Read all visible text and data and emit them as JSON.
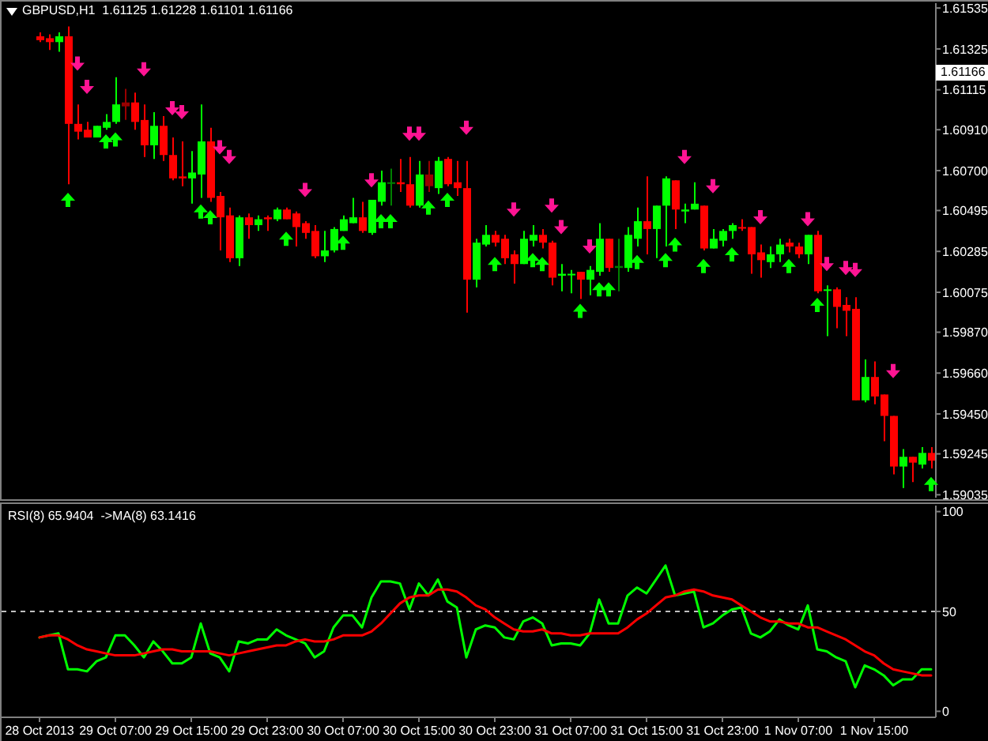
{
  "chart_data": [
    {
      "type": "candlestick",
      "title": "GBPUSD,H1  1.61125 1.61228 1.61101 1.61166",
      "categories": [
        null,
        null,
        null,
        null,
        null,
        null,
        null,
        null,
        null,
        null,
        null,
        null,
        null,
        null,
        null,
        null,
        null,
        null,
        null,
        null,
        null,
        null,
        null,
        null,
        null,
        null,
        null,
        null,
        null,
        null,
        null,
        null,
        null,
        null,
        null,
        null,
        null,
        null,
        null,
        null,
        null,
        null,
        null,
        null,
        null,
        null,
        null,
        null,
        null,
        null,
        null,
        null,
        null,
        null,
        null,
        null,
        null,
        null,
        null,
        null,
        null,
        null,
        null,
        null,
        null,
        null,
        null,
        null,
        null,
        null,
        null,
        null,
        null,
        null,
        null,
        null,
        null,
        null,
        null,
        null,
        null,
        null,
        null,
        null,
        null,
        null,
        null,
        null,
        null,
        null,
        null,
        null,
        null,
        null,
        null
      ],
      "ohlc": [
        [
          1.6139,
          1.6141,
          1.6136,
          1.6137
        ],
        [
          1.6138,
          1.614,
          1.6132,
          1.6136
        ],
        [
          1.6136,
          1.6141,
          1.6131,
          1.6139
        ],
        [
          1.6139,
          1.6144,
          1.6063,
          1.6094
        ],
        [
          1.6094,
          1.6104,
          1.6086,
          1.609
        ],
        [
          1.6091,
          1.6095,
          1.6087,
          1.6087
        ],
        [
          1.6087,
          1.6093,
          1.6087,
          1.6093
        ],
        [
          1.6092,
          1.6099,
          1.6091,
          1.6095
        ],
        [
          1.6095,
          1.6118,
          1.6094,
          1.6104
        ],
        [
          1.6105,
          1.6112,
          1.6096,
          1.6103
        ],
        [
          1.6105,
          1.611,
          1.6091,
          1.6095
        ],
        [
          1.6096,
          1.6104,
          1.6077,
          1.6083
        ],
        [
          1.6083,
          1.61,
          1.6076,
          1.6093
        ],
        [
          1.6093,
          1.6098,
          1.6075,
          1.6078
        ],
        [
          1.6078,
          1.6087,
          1.6065,
          1.6066
        ],
        [
          1.6067,
          1.6085,
          1.6062,
          1.6066
        ],
        [
          1.6066,
          1.608,
          1.6053,
          1.6069
        ],
        [
          1.6068,
          1.6104,
          1.6056,
          1.6085
        ],
        [
          1.6085,
          1.6092,
          1.6054,
          1.6056
        ],
        [
          1.6057,
          1.6059,
          1.6029,
          1.6046
        ],
        [
          1.6047,
          1.6051,
          1.6023,
          1.6025
        ],
        [
          1.6025,
          1.6047,
          1.6021,
          1.6046
        ],
        [
          1.6046,
          1.6048,
          1.6035,
          1.6042
        ],
        [
          1.6042,
          1.6047,
          1.6039,
          1.6045
        ],
        [
          1.6046,
          1.6047,
          1.6039,
          1.6045
        ],
        [
          1.6045,
          1.6051,
          1.6044,
          1.605
        ],
        [
          1.605,
          1.6051,
          1.6045,
          1.6045
        ],
        [
          1.6048,
          1.6049,
          1.6031,
          1.6041
        ],
        [
          1.6043,
          1.6044,
          1.6035,
          1.6038
        ],
        [
          1.6039,
          1.6042,
          1.6025,
          1.6026
        ],
        [
          1.6026,
          1.6039,
          1.6023,
          1.6029
        ],
        [
          1.6029,
          1.6041,
          1.6028,
          1.604
        ],
        [
          1.6039,
          1.6047,
          1.6039,
          1.6045
        ],
        [
          1.6043,
          1.6056,
          1.6043,
          1.6046
        ],
        [
          1.6046,
          1.6054,
          1.6038,
          1.6039
        ],
        [
          1.6038,
          1.6055,
          1.6037,
          1.6055
        ],
        [
          1.6054,
          1.607,
          1.6052,
          1.6064
        ],
        [
          1.6064,
          1.6071,
          1.6052,
          1.6064
        ],
        [
          1.6064,
          1.6076,
          1.6059,
          1.6063
        ],
        [
          1.6063,
          1.6077,
          1.6051,
          1.6052
        ],
        [
          1.6052,
          1.6075,
          1.6051,
          1.6068
        ],
        [
          1.6068,
          1.6075,
          1.6059,
          1.6062
        ],
        [
          1.6061,
          1.6077,
          1.6058,
          1.6075
        ],
        [
          1.6076,
          1.6077,
          1.6062,
          1.6063
        ],
        [
          1.6064,
          1.6075,
          1.6057,
          1.6061
        ],
        [
          1.6061,
          1.6075,
          1.5997,
          1.6014
        ],
        [
          1.6014,
          1.6035,
          1.601,
          1.6033
        ],
        [
          1.6032,
          1.6042,
          1.6031,
          1.6037
        ],
        [
          1.6037,
          1.6039,
          1.6031,
          1.6033
        ],
        [
          1.6035,
          1.6037,
          1.6022,
          1.6025
        ],
        [
          1.6027,
          1.6029,
          1.6012,
          1.6022
        ],
        [
          1.6022,
          1.6039,
          1.6022,
          1.6035
        ],
        [
          1.6034,
          1.6042,
          1.6031,
          1.6037
        ],
        [
          1.6037,
          1.604,
          1.603,
          1.6033
        ],
        [
          1.6033,
          1.6034,
          1.6011,
          1.6015
        ],
        [
          1.6016,
          1.6022,
          1.6008,
          1.6017
        ],
        [
          1.6017,
          1.6019,
          1.6007,
          1.6017
        ],
        [
          1.6018,
          1.6018,
          1.6004,
          1.6014
        ],
        [
          1.6014,
          1.6021,
          1.6006,
          1.6019
        ],
        [
          1.6018,
          1.6043,
          1.6016,
          1.6035
        ],
        [
          1.6035,
          1.6035,
          1.6018,
          1.602
        ],
        [
          1.602,
          1.6035,
          1.6008,
          1.6021
        ],
        [
          1.602,
          1.6041,
          1.6018,
          1.6037
        ],
        [
          1.6035,
          1.6051,
          1.6031,
          1.6044
        ],
        [
          1.6044,
          1.6067,
          1.6027,
          1.604
        ],
        [
          1.604,
          1.6052,
          1.6025,
          1.6052
        ],
        [
          1.6052,
          1.6067,
          1.6031,
          1.6066
        ],
        [
          1.6065,
          1.6065,
          1.604,
          1.605
        ],
        [
          1.6049,
          1.6053,
          1.6043,
          1.605
        ],
        [
          1.605,
          1.6064,
          1.605,
          1.6053
        ],
        [
          1.6052,
          1.6052,
          1.6029,
          1.603
        ],
        [
          1.603,
          1.604,
          1.603,
          1.6035
        ],
        [
          1.6034,
          1.604,
          1.6031,
          1.6039
        ],
        [
          1.6039,
          1.6043,
          1.6035,
          1.6042
        ],
        [
          1.6041,
          1.6045,
          1.6039,
          1.6041
        ],
        [
          1.6041,
          1.6041,
          1.6017,
          1.6027
        ],
        [
          1.6028,
          1.6032,
          1.6015,
          1.6024
        ],
        [
          1.6023,
          1.6031,
          1.602,
          1.6027
        ],
        [
          1.6027,
          1.6035,
          1.6023,
          1.6032
        ],
        [
          1.6033,
          1.6035,
          1.6028,
          1.6031
        ],
        [
          1.6031,
          1.6033,
          1.6025,
          1.6027
        ],
        [
          1.6027,
          1.6037,
          1.6022,
          1.6037
        ],
        [
          1.6037,
          1.6039,
          1.6007,
          1.6008
        ],
        [
          1.6009,
          1.6011,
          1.5985,
          1.6009
        ],
        [
          1.6009,
          1.601,
          1.5989,
          1.6
        ],
        [
          1.6001,
          1.6005,
          1.5985,
          1.5998
        ],
        [
          1.5999,
          1.6005,
          1.5952,
          1.5952
        ],
        [
          1.5952,
          1.5973,
          1.5951,
          1.5964
        ],
        [
          1.5964,
          1.5972,
          1.595,
          1.5954
        ],
        [
          1.5955,
          1.5955,
          1.5931,
          1.5944
        ],
        [
          1.5944,
          1.5944,
          1.5914,
          1.5918
        ],
        [
          1.5918,
          1.5927,
          1.5907,
          1.5923
        ],
        [
          1.5923,
          1.5923,
          1.591,
          1.592
        ],
        [
          1.5919,
          1.5928,
          1.5917,
          1.5925
        ],
        [
          1.5925,
          1.5928,
          1.5917,
          1.5921
        ]
      ],
      "colors": [
        "#ff0000",
        "#ff0000",
        "#00ff00",
        "#ff0000",
        "#ff0000",
        "#ff0000",
        "#00ff00",
        "#00ff00",
        "#00ff00",
        "#990000",
        "#ff0000",
        "#ff0000",
        "#00ff00",
        "#ff0000",
        "#ff0000",
        "#ff0000",
        "#00ff00",
        "#00ff00",
        "#ff0000",
        "#ff0000",
        "#ff0000",
        "#00ff00",
        "#ff0000",
        "#00ff00",
        "#ff0000",
        "#00ff00",
        "#ff0000",
        "#ff0000",
        "#ff0000",
        "#ff0000",
        "#00ff00",
        "#00ff00",
        "#00ff00",
        "#00ff00",
        "#ff0000",
        "#00ff00",
        "#00ff00",
        "#008000",
        "#ff0000",
        "#ff0000",
        "#00ff00",
        "#990000",
        "#00ff00",
        "#ff0000",
        "#ff0000",
        "#ff0000",
        "#00ff00",
        "#00ff00",
        "#ff0000",
        "#ff0000",
        "#ff0000",
        "#00ff00",
        "#00ff00",
        "#ff0000",
        "#ff0000",
        "#00ff00",
        "#00ff00",
        "#ff0000",
        "#00ff00",
        "#00ff00",
        "#ff0000",
        "#008000",
        "#00ff00",
        "#00ff00",
        "#ff0000",
        "#00ff00",
        "#00ff00",
        "#ff0000",
        "#00ff00",
        "#00ff00",
        "#ff0000",
        "#00ff00",
        "#00ff00",
        "#00ff00",
        "#ff0000",
        "#ff0000",
        "#ff0000",
        "#00ff00",
        "#00ff00",
        "#ff0000",
        "#ff0000",
        "#00ff00",
        "#ff0000",
        "#00ff00",
        "#ff0000",
        "#ff0000",
        "#ff0000",
        "#00ff00",
        "#ff0000",
        "#ff0000",
        "#ff0000",
        "#00ff00",
        "#ff0000",
        "#00ff00",
        "#ff0000"
      ],
      "series": [
        {
          "type": "scatter",
          "color": "#00ff00",
          "values": [
            null,
            null,
            null,
            1.6055,
            null,
            null,
            null,
            1.6085,
            1.6086,
            null,
            null,
            null,
            null,
            null,
            null,
            null,
            null,
            1.6049,
            1.6046,
            null,
            null,
            null,
            null,
            null,
            null,
            null,
            1.6035,
            null,
            null,
            null,
            null,
            null,
            1.6033,
            null,
            null,
            null,
            1.6044,
            1.6044,
            null,
            null,
            null,
            1.6051,
            null,
            1.6055,
            null,
            null,
            null,
            null,
            1.6022,
            null,
            null,
            null,
            1.6024,
            1.6022,
            null,
            null,
            null,
            1.5998,
            null,
            1.6009,
            1.6009,
            null,
            null,
            1.6023,
            null,
            null,
            1.6024,
            1.6032,
            null,
            null,
            1.6021,
            null,
            null,
            1.6027,
            null,
            null,
            null,
            null,
            null,
            1.6021,
            null,
            null,
            1.6001,
            null,
            null,
            null,
            null,
            null,
            null,
            null,
            null,
            null,
            null,
            null,
            1.5909
          ]
        },
        {
          "type": "scatter",
          "color": "#ff1493",
          "values": [
            null,
            null,
            null,
            null,
            1.6125,
            1.6113,
            null,
            null,
            null,
            null,
            null,
            1.6122,
            null,
            null,
            1.6102,
            1.61,
            null,
            null,
            null,
            1.6082,
            1.6077,
            null,
            null,
            null,
            null,
            null,
            null,
            null,
            1.606,
            null,
            null,
            null,
            null,
            null,
            null,
            1.6065,
            null,
            null,
            null,
            1.6089,
            1.6089,
            null,
            null,
            null,
            null,
            1.6092,
            null,
            null,
            null,
            null,
            1.605,
            null,
            null,
            null,
            1.6052,
            1.6041,
            null,
            null,
            1.6031,
            null,
            null,
            null,
            null,
            null,
            null,
            null,
            null,
            null,
            1.6077,
            null,
            null,
            1.6062,
            null,
            null,
            null,
            null,
            1.6046,
            null,
            null,
            null,
            null,
            1.6045,
            null,
            1.6022,
            null,
            1.602,
            1.6019,
            null,
            null,
            null,
            1.5967,
            null,
            null,
            null,
            null
          ]
        }
      ],
      "marker": "triangle",
      "ylim": [
        1.5902,
        1.6156
      ],
      "yticks": [
        1.59035,
        1.59245,
        {
          "value": 1.5945,
          "label": "1.59450"
        },
        {
          "value": 1.5966,
          "label": "1.59660"
        },
        {
          "value": 1.5987,
          "label": "1.59870"
        },
        1.60075,
        1.60285,
        1.60495,
        {
          "value": 1.607,
          "label": "1.60700"
        },
        {
          "value": 1.6091,
          "label": "1.60910"
        },
        1.61115,
        1.61325,
        1.61535
      ],
      "tick_labels": "y",
      "annotations": [
        "1.61166"
      ]
    },
    {
      "type": "line",
      "title": "RSI(8) 65.9404  ->MA(8) 63.1416",
      "categories": [
        "28 Oct 2013",
        null,
        null,
        null,
        null,
        null,
        null,
        null,
        "29 Oct 07:00",
        null,
        null,
        null,
        null,
        null,
        null,
        null,
        "29 Oct 15:00",
        null,
        null,
        null,
        null,
        null,
        null,
        null,
        "29 Oct 23:00",
        null,
        null,
        null,
        null,
        null,
        null,
        null,
        "30 Oct 07:00",
        null,
        null,
        null,
        null,
        null,
        null,
        null,
        "30 Oct 15:00",
        null,
        null,
        null,
        null,
        null,
        null,
        null,
        "30 Oct 23:00",
        null,
        null,
        null,
        null,
        null,
        null,
        null,
        "31 Oct 07:00",
        null,
        null,
        null,
        null,
        null,
        null,
        null,
        "31 Oct 15:00",
        null,
        null,
        null,
        null,
        null,
        null,
        null,
        "31 Oct 23:00",
        null,
        null,
        null,
        null,
        null,
        null,
        null,
        "1 Nov 07:00",
        null,
        null,
        null,
        null,
        null,
        null,
        null,
        "1 Nov 15:00",
        null,
        null,
        null,
        null,
        null,
        null
      ],
      "series": [
        {
          "color": "#00ff00",
          "values": [
            37,
            38,
            39,
            21,
            21,
            20,
            25,
            27,
            38,
            38,
            33,
            27,
            35,
            30,
            24,
            24,
            27,
            44,
            29,
            27,
            20,
            35,
            34,
            36,
            36,
            41,
            38,
            36,
            34,
            27,
            30,
            42,
            48,
            48,
            42,
            57,
            65,
            65,
            64,
            51,
            64,
            58,
            66,
            55,
            52,
            27,
            41,
            43,
            42,
            37,
            36,
            45,
            47,
            44,
            33,
            34,
            34,
            33,
            39,
            56,
            44,
            44,
            58,
            62,
            59,
            66,
            73,
            58,
            59,
            60,
            42,
            44,
            48,
            51,
            52,
            39,
            37,
            40,
            46,
            43,
            41,
            53,
            31,
            30,
            27,
            25,
            12,
            23,
            21,
            18,
            13,
            16,
            16,
            21,
            21
          ]
        },
        {
          "color": "#ff0000",
          "values": [
            37,
            38,
            38,
            36,
            33,
            31,
            30,
            29,
            28,
            28,
            28,
            29,
            30,
            31,
            31,
            30,
            30,
            30,
            30,
            29,
            28,
            29,
            30,
            31,
            32,
            33,
            33,
            35,
            36,
            35,
            35,
            36,
            38,
            38,
            38,
            40,
            44,
            49,
            54,
            57,
            58,
            58,
            61,
            61,
            60,
            57,
            53,
            51,
            47,
            44,
            41,
            40,
            40,
            41,
            39,
            39,
            38,
            38,
            39,
            39,
            39,
            39,
            42,
            46,
            49,
            53,
            57,
            58,
            60,
            61,
            60,
            58,
            57,
            56,
            53,
            50,
            47,
            45,
            45,
            44,
            44,
            42,
            42,
            40,
            38,
            36,
            33,
            30,
            28,
            24,
            21,
            20,
            19,
            18,
            18
          ]
        }
      ],
      "ylim": [
        -3,
        103
      ],
      "yticks": [
        0,
        50,
        100
      ],
      "ref_lines": [
        {
          "axis": "y",
          "value": 50,
          "color": "#c0c0c0",
          "line_style": "dashed"
        }
      ]
    }
  ]
}
